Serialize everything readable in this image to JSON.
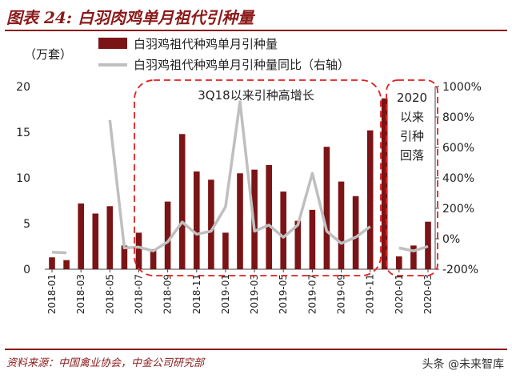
{
  "header": {
    "title": "图表 24: 白羽肉鸡单月祖代引种量"
  },
  "footer": {
    "source": "资料来源：中国禽业协会，中金公司研究部",
    "watermark": "头条 @未来智库"
  },
  "chart_data": {
    "type": "bar+line",
    "unit_label": "（万套）",
    "categories": [
      "2018-01",
      "2018-02",
      "2018-03",
      "2018-04",
      "2018-05",
      "2018-06",
      "2018-07",
      "2018-08",
      "2018-09",
      "2018-10",
      "2018-11",
      "2018-12",
      "2019-01",
      "2019-02",
      "2019-03",
      "2019-04",
      "2019-05",
      "2019-06",
      "2019-07",
      "2019-08",
      "2019-09",
      "2019-10",
      "2019-11",
      "2019-12",
      "2020-01",
      "2020-02",
      "2020-03"
    ],
    "x_tick_labels": [
      "2018-01",
      "2018-03",
      "2018-05",
      "2018-07",
      "2018-09",
      "2018-11",
      "2019-01",
      "2019-03",
      "2019-05",
      "2019-07",
      "2019-09",
      "2019-11",
      "2020-01",
      "2020-03"
    ],
    "series": [
      {
        "name": "白羽鸡祖代种鸡单月引种量",
        "type": "bar",
        "axis": "left",
        "color": "#7b1416",
        "values": [
          1.3,
          1.0,
          7.2,
          6.1,
          6.9,
          2.6,
          4.0,
          2.2,
          7.4,
          14.8,
          10.7,
          9.8,
          4.0,
          10.5,
          10.9,
          11.4,
          8.5,
          5.3,
          6.5,
          13.4,
          9.6,
          8.0,
          15.2,
          18.7,
          1.4,
          2.6,
          5.2
        ]
      },
      {
        "name": "白羽鸡祖代种鸡单月引种量同比（右轴）",
        "type": "line",
        "axis": "right",
        "color": "#bfbfbf",
        "values": [
          -88,
          -92,
          null,
          null,
          780,
          -60,
          -55,
          -80,
          -20,
          110,
          30,
          50,
          210,
          900,
          50,
          90,
          10,
          90,
          430,
          50,
          -30,
          10,
          80,
          null,
          -60,
          -80,
          -50
        ]
      }
    ],
    "y_left": {
      "range": [
        0,
        20
      ],
      "ticks": [
        "0",
        "5",
        "10",
        "15",
        "20"
      ]
    },
    "y_right": {
      "range": [
        -200,
        1000
      ],
      "ticks": [
        "-200%",
        "0%",
        "200%",
        "400%",
        "600%",
        "800%",
        "1000%"
      ]
    },
    "annotations": [
      {
        "text": "3Q18以来引种高增长"
      },
      {
        "lines": [
          "2020",
          "以来",
          "引种",
          "回落"
        ]
      }
    ],
    "legend": "top-left"
  }
}
